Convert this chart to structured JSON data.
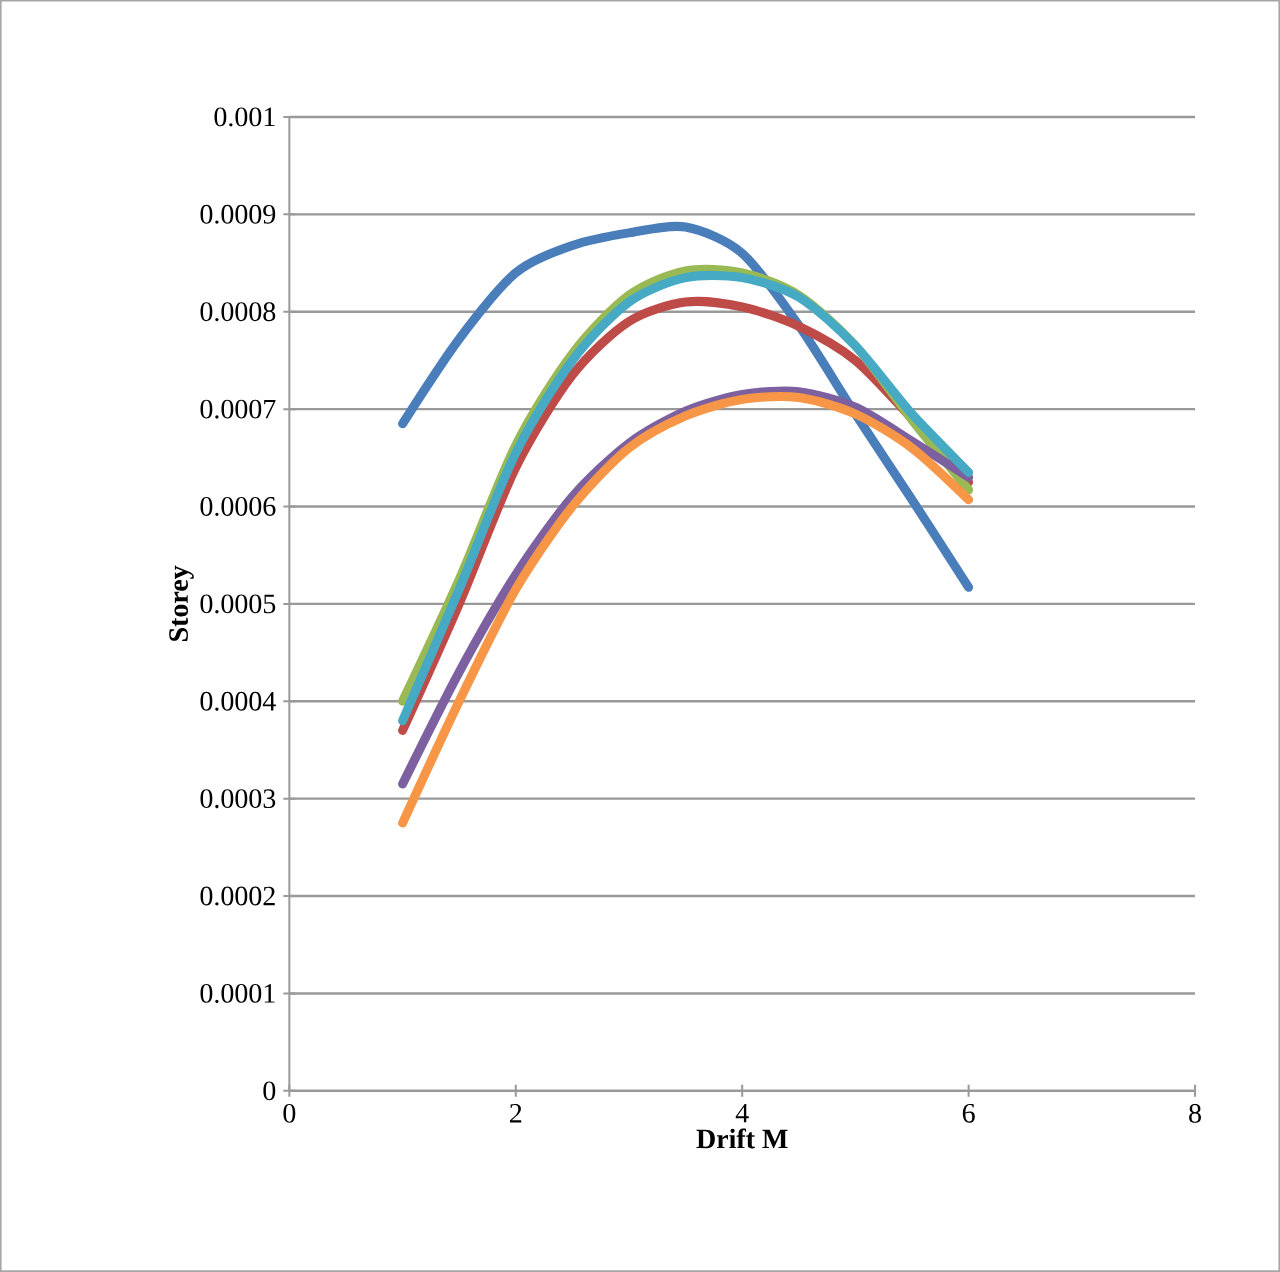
{
  "chart_data": {
    "type": "line",
    "xlabel": "Drift M",
    "ylabel": "Storey",
    "xlim": [
      0,
      8
    ],
    "xticks": [
      0,
      2,
      4,
      6,
      8
    ],
    "ylim": [
      0,
      0.001
    ],
    "yticks": [
      0,
      0.0001,
      0.0002,
      0.0003,
      0.0004,
      0.0005,
      0.0006,
      0.0007,
      0.0008,
      0.0009,
      0.001
    ],
    "grid": "y",
    "marker": "none",
    "line_style": "solid",
    "x": [
      1,
      1.5,
      2,
      2.5,
      3,
      3.5,
      4,
      4.5,
      5,
      5.5,
      6
    ],
    "series": [
      {
        "color": "#4a7ebb",
        "values": [
          0.000685,
          0.000772,
          0.00084,
          0.000868,
          0.000881,
          0.000887,
          0.00086,
          0.000786,
          0.000695,
          0.000607,
          0.000517
        ]
      },
      {
        "color": "#be4b48",
        "values": [
          0.00037,
          0.0005,
          0.00064,
          0.000735,
          0.00079,
          0.00081,
          0.000805,
          0.000785,
          0.00075,
          0.00069,
          0.000625
        ]
      },
      {
        "color": "#98b954",
        "values": [
          0.0004,
          0.000525,
          0.000663,
          0.000757,
          0.000817,
          0.000842,
          0.00084,
          0.000817,
          0.000765,
          0.000689,
          0.000617
        ]
      },
      {
        "color": "#7d60a0",
        "values": [
          0.000315,
          0.00043,
          0.00053,
          0.00061,
          0.000665,
          0.000698,
          0.000715,
          0.000718,
          0.000702,
          0.000667,
          0.00063
        ]
      },
      {
        "color": "#46aac5",
        "values": [
          0.00038,
          0.000515,
          0.000655,
          0.00075,
          0.00081,
          0.000835,
          0.000835,
          0.000815,
          0.000765,
          0.000695,
          0.000635
        ]
      },
      {
        "color": "#f79646",
        "values": [
          0.000275,
          0.0004,
          0.000515,
          0.0006,
          0.00066,
          0.000693,
          0.00071,
          0.000712,
          0.000695,
          0.00066,
          0.000607
        ]
      }
    ]
  }
}
